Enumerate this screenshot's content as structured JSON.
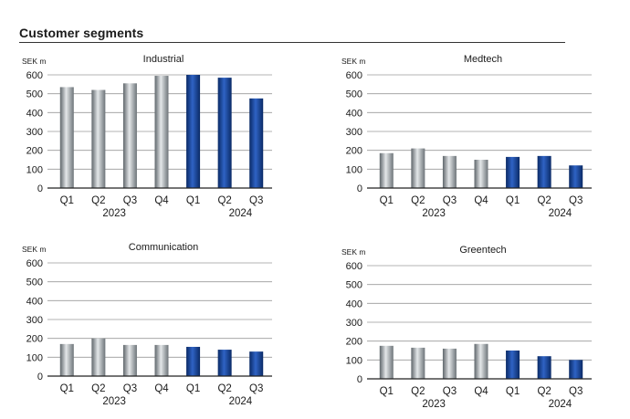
{
  "page": {
    "title": "Customer segments"
  },
  "colors": {
    "year_2023": "#8d9499",
    "year_2024": "#0d3a8c",
    "grid": "#9a9a9a",
    "axis": "#222222"
  },
  "chart_data": [
    {
      "type": "bar",
      "title": "Industrial",
      "ylabel": "SEK m",
      "ylim": [
        0,
        600
      ],
      "yticks": [
        0,
        100,
        200,
        300,
        400,
        500,
        600
      ],
      "categories": [
        "Q1",
        "Q2",
        "Q3",
        "Q4",
        "Q1",
        "Q2",
        "Q3"
      ],
      "years": [
        {
          "label": "2023",
          "start": 0,
          "end": 3
        },
        {
          "label": "2024",
          "start": 4,
          "end": 6
        }
      ],
      "values": [
        535,
        520,
        555,
        595,
        600,
        585,
        475
      ],
      "grid": true
    },
    {
      "type": "bar",
      "title": "Medtech",
      "ylabel": "SEK m",
      "ylim": [
        0,
        600
      ],
      "yticks": [
        0,
        100,
        200,
        300,
        400,
        500,
        600
      ],
      "categories": [
        "Q1",
        "Q2",
        "Q3",
        "Q4",
        "Q1",
        "Q2",
        "Q3"
      ],
      "years": [
        {
          "label": "2023",
          "start": 0,
          "end": 3
        },
        {
          "label": "2024",
          "start": 4,
          "end": 6
        }
      ],
      "values": [
        185,
        210,
        170,
        150,
        165,
        170,
        120
      ],
      "grid": true
    },
    {
      "type": "bar",
      "title": "Communication",
      "ylabel": "SEK m",
      "ylim": [
        0,
        600
      ],
      "yticks": [
        0,
        100,
        200,
        300,
        400,
        500,
        600
      ],
      "categories": [
        "Q1",
        "Q2",
        "Q3",
        "Q4",
        "Q1",
        "Q2",
        "Q3"
      ],
      "years": [
        {
          "label": "2023",
          "start": 0,
          "end": 3
        },
        {
          "label": "2024",
          "start": 4,
          "end": 6
        }
      ],
      "values": [
        170,
        200,
        165,
        165,
        155,
        140,
        130
      ],
      "grid": true
    },
    {
      "type": "bar",
      "title": "Greentech",
      "ylabel": "SEK m",
      "ylim": [
        0,
        600
      ],
      "yticks": [
        0,
        100,
        200,
        300,
        400,
        500,
        600
      ],
      "categories": [
        "Q1",
        "Q2",
        "Q3",
        "Q4",
        "Q1",
        "Q2",
        "Q3"
      ],
      "years": [
        {
          "label": "2023",
          "start": 0,
          "end": 3
        },
        {
          "label": "2024",
          "start": 4,
          "end": 6
        }
      ],
      "values": [
        175,
        165,
        160,
        185,
        150,
        120,
        100
      ],
      "grid": true
    }
  ]
}
